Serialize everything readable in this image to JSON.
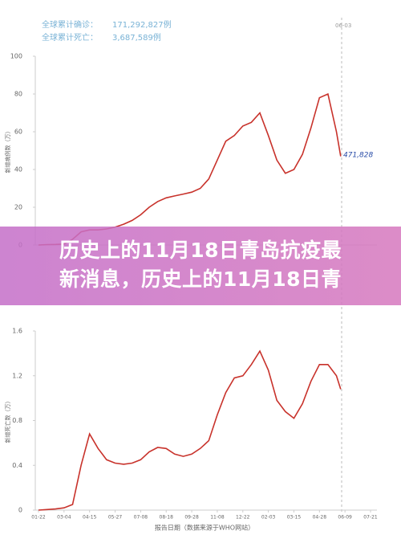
{
  "banner": {
    "lines": [
      "历史上的11月18日青岛抗疫最",
      "新消息，历史上的11月18日青"
    ]
  },
  "chart_data": [
    {
      "type": "line",
      "y_label": "新增病例数（万）",
      "annotations": [
        "全球累计确诊：",
        "171,292,827例",
        "全球累计死亡：",
        "3,687,589例",
        "06-03",
        "471,828"
      ],
      "xlim": [
        0,
        546
      ],
      "ylim": [
        0,
        100
      ],
      "yticks": [
        0,
        20,
        40,
        60,
        80,
        100
      ],
      "x": [
        0,
        14,
        28,
        42,
        56,
        70,
        84,
        98,
        112,
        126,
        140,
        154,
        168,
        182,
        196,
        210,
        224,
        238,
        252,
        266,
        280,
        294,
        308,
        322,
        336,
        350,
        364,
        378,
        392,
        406,
        420,
        434,
        448,
        462,
        476,
        490,
        497
      ],
      "series": [
        {
          "color": "#c8322b",
          "values": [
            0,
            0.2,
            0.3,
            0.5,
            3,
            7,
            8,
            8,
            8.5,
            9.5,
            11,
            13,
            16,
            20,
            23,
            25,
            26,
            27,
            28,
            30,
            35,
            45,
            55,
            58,
            63,
            65,
            70,
            58,
            45,
            38,
            40,
            48,
            62,
            78,
            80,
            60,
            47
          ]
        }
      ]
    },
    {
      "type": "line",
      "y_label": "新增死亡数（万）",
      "x_label": "报告日期（数据来源于WHO网站）",
      "xlim": [
        0,
        546
      ],
      "xticks": [
        {
          "value": 0,
          "label": "01-22"
        },
        {
          "value": 42,
          "label": "03-04"
        },
        {
          "value": 84,
          "label": "04-15"
        },
        {
          "value": 126,
          "label": "05-27"
        },
        {
          "value": 168,
          "label": "07-08"
        },
        {
          "value": 210,
          "label": "08-18"
        },
        {
          "value": 252,
          "label": "09-28"
        },
        {
          "value": 294,
          "label": "11-08"
        },
        {
          "value": 336,
          "label": "12-22"
        },
        {
          "value": 378,
          "label": "02-03"
        },
        {
          "value": 420,
          "label": "03-15"
        },
        {
          "value": 462,
          "label": "04-28"
        },
        {
          "value": 504,
          "label": "06-09"
        },
        {
          "value": 546,
          "label": "07-21"
        }
      ],
      "ylim": [
        0,
        1.6
      ],
      "yticks": [
        0,
        0.4,
        0.8,
        1.2,
        1.6
      ],
      "x": [
        0,
        14,
        28,
        42,
        56,
        70,
        84,
        98,
        112,
        126,
        140,
        154,
        168,
        182,
        196,
        210,
        224,
        238,
        252,
        266,
        280,
        294,
        308,
        322,
        336,
        350,
        364,
        378,
        392,
        406,
        420,
        434,
        448,
        462,
        476,
        490,
        497
      ],
      "series": [
        {
          "color": "#c8322b",
          "values": [
            0,
            0.005,
            0.01,
            0.02,
            0.05,
            0.4,
            0.68,
            0.55,
            0.45,
            0.42,
            0.41,
            0.42,
            0.45,
            0.52,
            0.56,
            0.55,
            0.5,
            0.48,
            0.5,
            0.55,
            0.62,
            0.85,
            1.05,
            1.18,
            1.2,
            1.3,
            1.42,
            1.25,
            0.98,
            0.88,
            0.82,
            0.95,
            1.15,
            1.3,
            1.3,
            1.2,
            1.08
          ]
        }
      ]
    }
  ]
}
